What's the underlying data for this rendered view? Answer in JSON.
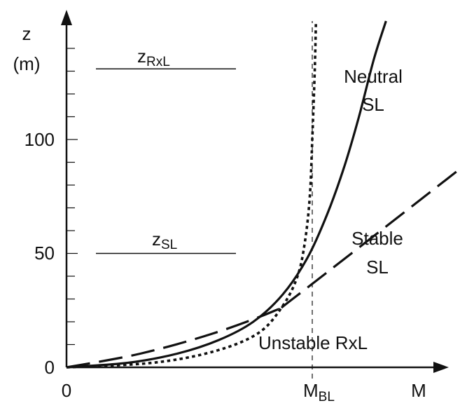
{
  "chart_data": {
    "type": "line",
    "y_axis": {
      "label_line1": "z",
      "label_line2": "(m)",
      "ticks": [
        "0",
        "50",
        "100"
      ],
      "ylim": [
        0,
        150
      ]
    },
    "x_axis": {
      "label": "M",
      "ticks": [
        {
          "main": "0",
          "sub": ""
        },
        {
          "main": "M",
          "sub": "BL"
        }
      ]
    },
    "reference_lines": [
      {
        "name_main": "z",
        "name_sub": "RxL",
        "z": 131
      },
      {
        "name_main": "z",
        "name_sub": "SL",
        "z": 50
      }
    ],
    "m_bl_value": 1.0,
    "series": [
      {
        "name_line1": "Neutral",
        "name_line2": "SL",
        "style": "solid",
        "points": [
          [
            0,
            0
          ],
          [
            0.25,
            2
          ],
          [
            0.45,
            6
          ],
          [
            0.62,
            12
          ],
          [
            0.76,
            20
          ],
          [
            0.88,
            32
          ],
          [
            0.98,
            48
          ],
          [
            1.06,
            67
          ],
          [
            1.13,
            88
          ],
          [
            1.19,
            110
          ],
          [
            1.25,
            135
          ],
          [
            1.3,
            152
          ]
        ]
      },
      {
        "name_line1": "Stable",
        "name_line2": "SL",
        "style": "long-dash",
        "points": [
          [
            0,
            0
          ],
          [
            0.3,
            6
          ],
          [
            0.6,
            15
          ],
          [
            0.85,
            25
          ],
          [
            0.92,
            30
          ],
          [
            1.6,
            87
          ]
        ]
      },
      {
        "name_line1": "Unstable RxL",
        "name_line2": "",
        "style": "dotted",
        "points": [
          [
            0,
            0
          ],
          [
            0.35,
            2
          ],
          [
            0.6,
            7
          ],
          [
            0.78,
            15
          ],
          [
            0.88,
            27
          ],
          [
            0.94,
            40
          ],
          [
            0.97,
            55
          ],
          [
            0.99,
            75
          ],
          [
            1.0,
            100
          ],
          [
            1.01,
            130
          ],
          [
            1.015,
            152
          ]
        ]
      }
    ]
  }
}
